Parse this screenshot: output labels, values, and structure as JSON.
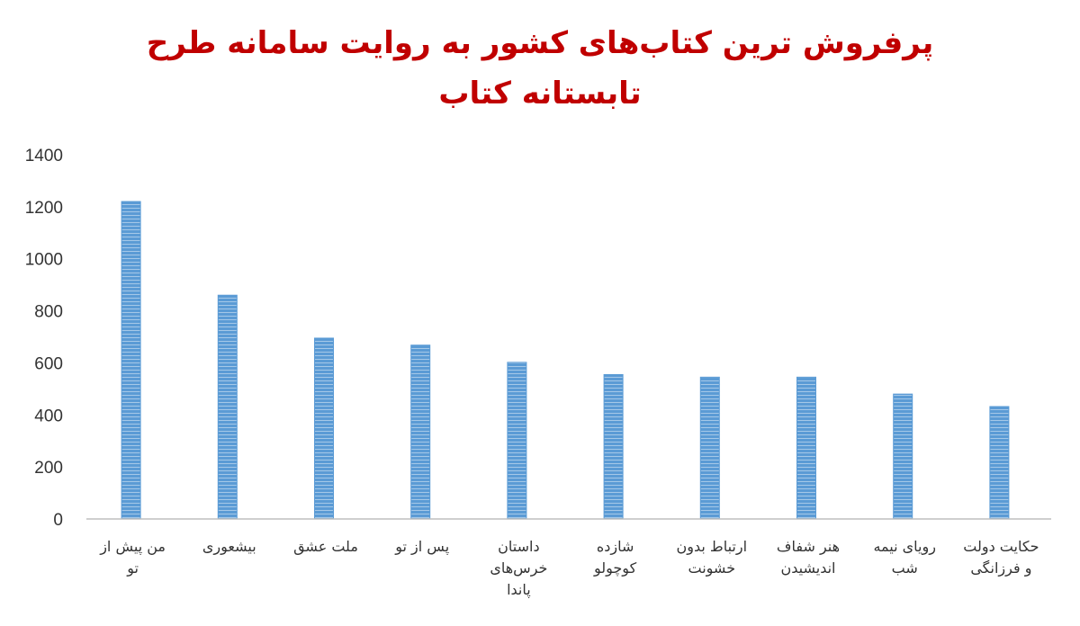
{
  "chart_data": {
    "type": "bar",
    "title_lines": [
      "پرفروش ترین کتاب‌های کشور به روایت سامانه طرح",
      "تابستانه کتاب"
    ],
    "categories": [
      [
        "من پیش از",
        "تو"
      ],
      [
        "بیشعوری"
      ],
      [
        "ملت عشق"
      ],
      [
        "پس از تو"
      ],
      [
        "داستان",
        "خرس‌های",
        "پاندا"
      ],
      [
        "شازده",
        "کوچولو"
      ],
      [
        "ارتباط بدون",
        "خشونت"
      ],
      [
        "هنر شفاف",
        "اندیشیدن"
      ],
      [
        "رویای نیمه",
        "شب"
      ],
      [
        "حکایت دولت",
        "و فرزانگی"
      ]
    ],
    "values": [
      1220,
      860,
      695,
      668,
      602,
      555,
      545,
      545,
      480,
      432
    ],
    "ylim": [
      0,
      1400
    ],
    "yticks": [
      0,
      200,
      400,
      600,
      800,
      1000,
      1200,
      1400
    ],
    "bar_color": "#5b9bd5",
    "grid": false,
    "legend": "none"
  }
}
